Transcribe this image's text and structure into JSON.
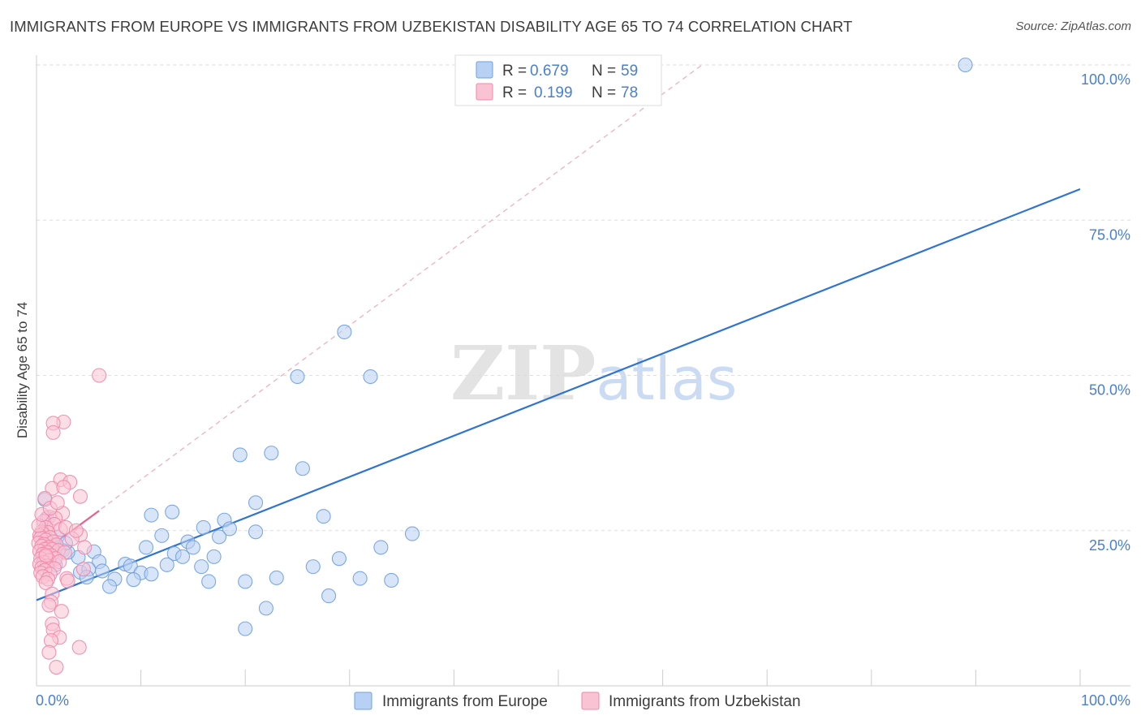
{
  "chart_data": {
    "type": "scatter",
    "title": "IMMIGRANTS FROM EUROPE VS IMMIGRANTS FROM UZBEKISTAN DISABILITY AGE 65 TO 74 CORRELATION CHART",
    "source": "Source: ZipAtlas.com",
    "ylabel": "Disability Age 65 to 74",
    "xlabel": "",
    "xlim": [
      0,
      100
    ],
    "ylim": [
      0,
      100
    ],
    "x_tick_labels": [
      "0.0%",
      "100.0%"
    ],
    "y_ticks": [
      25,
      50,
      75,
      100
    ],
    "y_tick_labels": [
      "25.0%",
      "50.0%",
      "75.0%",
      "100.0%"
    ],
    "grid": "horizontal dashed",
    "watermark": "ZIPatlas",
    "legend_top": [
      {
        "r_label": "R =",
        "r_value": "0.679",
        "n_label": "N =",
        "n_value": "59"
      },
      {
        "r_label": "R =",
        "r_value": "0.199",
        "n_label": "N =",
        "n_value": "78"
      }
    ],
    "series": [
      {
        "name": "Immigrants from Europe",
        "color": "#6fa0e0",
        "fill": "#b8d0f4",
        "line_color": "#2f74d0",
        "trend": [
          [
            0,
            13.8
          ],
          [
            100,
            80.0
          ]
        ],
        "points": [
          [
            89,
            100
          ],
          [
            29.5,
            57
          ],
          [
            25,
            49.8
          ],
          [
            32,
            49.8
          ],
          [
            22.5,
            37.5
          ],
          [
            19.5,
            37.2
          ],
          [
            25.5,
            35
          ],
          [
            21,
            29.5
          ],
          [
            13,
            28
          ],
          [
            11,
            27.5
          ],
          [
            27.5,
            27.3
          ],
          [
            18,
            26.7
          ],
          [
            16,
            25.5
          ],
          [
            18.5,
            25.3
          ],
          [
            21,
            24.8
          ],
          [
            36,
            24.5
          ],
          [
            12,
            24.2
          ],
          [
            17.5,
            24
          ],
          [
            14.5,
            23.2
          ],
          [
            10.5,
            22.3
          ],
          [
            15,
            22.3
          ],
          [
            33,
            22.3
          ],
          [
            2.5,
            21.8
          ],
          [
            5.5,
            21.6
          ],
          [
            13.2,
            21.3
          ],
          [
            14,
            20.8
          ],
          [
            17,
            20.8
          ],
          [
            4,
            20.7
          ],
          [
            29,
            20.5
          ],
          [
            6,
            20
          ],
          [
            8.5,
            19.6
          ],
          [
            9,
            19.3
          ],
          [
            12.5,
            19.5
          ],
          [
            15.8,
            19.2
          ],
          [
            26.5,
            19.2
          ],
          [
            1.8,
            19.5
          ],
          [
            4.2,
            18.3
          ],
          [
            5,
            18.8
          ],
          [
            6.3,
            18.5
          ],
          [
            10,
            18.2
          ],
          [
            11,
            18
          ],
          [
            4.8,
            17.5
          ],
          [
            7.5,
            17.2
          ],
          [
            9.3,
            17.1
          ],
          [
            31,
            17.3
          ],
          [
            23,
            17.4
          ],
          [
            34,
            17
          ],
          [
            16.5,
            16.8
          ],
          [
            20,
            16.8
          ],
          [
            7,
            16
          ],
          [
            28,
            14.5
          ],
          [
            22,
            12.5
          ],
          [
            20,
            9.2
          ],
          [
            1,
            27
          ],
          [
            2,
            24
          ],
          [
            1.5,
            22.5
          ],
          [
            3,
            21.5
          ],
          [
            0.8,
            30
          ],
          [
            2.8,
            23
          ]
        ]
      },
      {
        "name": "Immigrants from Uzbekistan",
        "color": "#f08aab",
        "fill": "#f9c3d3",
        "line_color": "#e8608f",
        "trend": [
          [
            0,
            20.8
          ],
          [
            6,
            28.2
          ]
        ],
        "trend_extended": [
          [
            0,
            20.8
          ],
          [
            100,
            145
          ]
        ],
        "points": [
          [
            6,
            50
          ],
          [
            2.6,
            42.5
          ],
          [
            1.6,
            42.3
          ],
          [
            1.6,
            40.8
          ],
          [
            2.3,
            33.2
          ],
          [
            3.2,
            32.8
          ],
          [
            1.5,
            31.8
          ],
          [
            2.6,
            32
          ],
          [
            4.2,
            30.5
          ],
          [
            0.8,
            30.2
          ],
          [
            2.5,
            27.8
          ],
          [
            1.2,
            27.2
          ],
          [
            1.8,
            27
          ],
          [
            0.7,
            26.5
          ],
          [
            1.7,
            26
          ],
          [
            0.9,
            25.5
          ],
          [
            2.3,
            25.2
          ],
          [
            0.5,
            24.8
          ],
          [
            1.1,
            24.7
          ],
          [
            0.6,
            24.5
          ],
          [
            0.3,
            24.2
          ],
          [
            4.2,
            24.3
          ],
          [
            1.3,
            23.9
          ],
          [
            0.4,
            23.8
          ],
          [
            0.9,
            23.5
          ],
          [
            1.6,
            23.2
          ],
          [
            0.2,
            23
          ],
          [
            0.7,
            22.8
          ],
          [
            1.9,
            22.7
          ],
          [
            0.5,
            22.5
          ],
          [
            1.2,
            22.3
          ],
          [
            0.8,
            22
          ],
          [
            1.5,
            22
          ],
          [
            2.1,
            21.8
          ],
          [
            0.3,
            21.7
          ],
          [
            1.0,
            21.5
          ],
          [
            0.6,
            21.2
          ],
          [
            2.7,
            21.5
          ],
          [
            4.6,
            22.3
          ],
          [
            1.4,
            21
          ],
          [
            0.9,
            20.8
          ],
          [
            0.4,
            20.5
          ],
          [
            1.8,
            20.5
          ],
          [
            1.2,
            20.2
          ],
          [
            0.7,
            19.9
          ],
          [
            2.2,
            20
          ],
          [
            0.3,
            19.6
          ],
          [
            1.0,
            19.3
          ],
          [
            0.5,
            19
          ],
          [
            1.7,
            18.9
          ],
          [
            0.8,
            18.6
          ],
          [
            4.5,
            18.8
          ],
          [
            0.4,
            18.2
          ],
          [
            1.3,
            18
          ],
          [
            0.6,
            17.6
          ],
          [
            2.9,
            17.3
          ],
          [
            1.1,
            17.2
          ],
          [
            0.9,
            16.6
          ],
          [
            3.0,
            16.9
          ],
          [
            1.5,
            14.8
          ],
          [
            1.4,
            13.5
          ],
          [
            1.2,
            13
          ],
          [
            2.4,
            12
          ],
          [
            1.5,
            10
          ],
          [
            1.6,
            9
          ],
          [
            2.2,
            7.8
          ],
          [
            1.4,
            7.3
          ],
          [
            4.1,
            6.2
          ],
          [
            1.2,
            5.4
          ],
          [
            1.9,
            3
          ],
          [
            0.2,
            25.8
          ],
          [
            2.8,
            25.5
          ],
          [
            3.4,
            23.7
          ],
          [
            0.5,
            27.6
          ],
          [
            1.3,
            28.6
          ],
          [
            2.0,
            29.5
          ],
          [
            3.8,
            25.0
          ],
          [
            0.9,
            21.0
          ]
        ]
      }
    ]
  },
  "legend_bottom": [
    "Immigrants from Europe",
    "Immigrants from Uzbekistan"
  ],
  "colors": {
    "axis_label_blue": "#4a7fcf",
    "grid": "#dddddd",
    "text": "#3c3c3c"
  }
}
